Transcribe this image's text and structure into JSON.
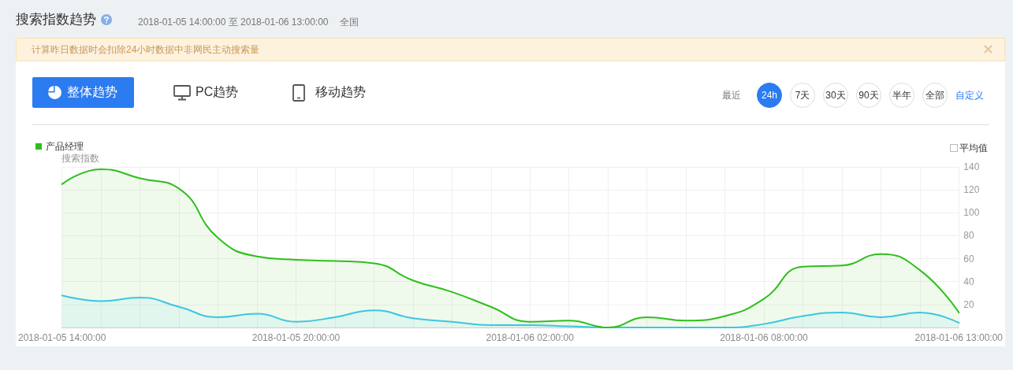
{
  "chart_data": {
    "type": "area",
    "title": "搜索指数趋势",
    "subtitle": "2018-01-05 14:00:00 至 2018-01-06 13:00:00",
    "ylabel": "搜索指数",
    "annotations": [
      "全国",
      "计算昨日数据时会扣除24小时数据中非网民主动搜索量",
      "整体趋势",
      "PC趋势",
      "移动趋势",
      "最近",
      "24h",
      "7天",
      "30天",
      "90天",
      "半年",
      "全部",
      "自定义",
      "平均值"
    ],
    "categories": [
      "2018-01-05 14:00:00",
      null,
      null,
      null,
      null,
      null,
      "2018-01-05 20:00:00",
      null,
      null,
      null,
      null,
      null,
      "2018-01-06 02:00:00",
      null,
      null,
      null,
      null,
      null,
      "2018-01-06 08:00:00",
      null,
      null,
      null,
      null,
      "2018-01-06 13:00:00"
    ],
    "series": [
      {
        "color": "#3ec6f2",
        "values": [
          28,
          23,
          26,
          18,
          9,
          12,
          5,
          9,
          15,
          8,
          5,
          2,
          2,
          1,
          0,
          0,
          0,
          0,
          3,
          10,
          13,
          9,
          13,
          4
        ]
      },
      {
        "name": "产品经理",
        "color": "#2fbf1c",
        "values": [
          125,
          138,
          130,
          121,
          78,
          62,
          59,
          58,
          56,
          41,
          31,
          18,
          5,
          6,
          0,
          9,
          6,
          10,
          25,
          53,
          54,
          64,
          50,
          13
        ]
      }
    ],
    "ylim": [
      0,
      140
    ],
    "yticks": [
      20,
      40,
      60,
      80,
      100,
      120,
      140
    ],
    "grid": true,
    "legend": "top left"
  }
}
